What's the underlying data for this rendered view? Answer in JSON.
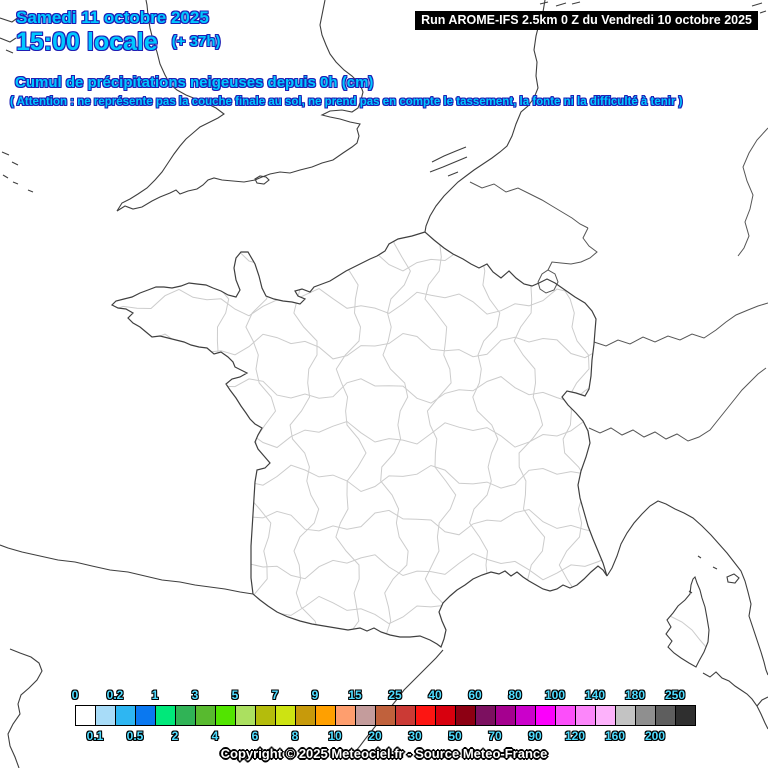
{
  "title_block": {
    "date": "Samedi 11 octobre 2025",
    "time": "15:00 locale",
    "offset": "(+ 37h)",
    "subtitle": "Cumul de précipitations neigeuses depuis 0h (cm)",
    "warning": "( Attention : ne représente pas la couche finale au sol, ne prend pas en compte le tassement, la fonte ni la difficulté à tenir )",
    "text_color": "#00c8ff",
    "outline_color": "#1e1eb4"
  },
  "run_banner": {
    "label": "Run AROME-IFS 2.5km 0 Z du Vendredi 10 octobre 2025",
    "bg": "#000000",
    "fg": "#ffffff"
  },
  "map": {
    "region": "France métropolitaine et pays voisins, limites de départements",
    "coast_color": "#3f3f3f",
    "border_color": "#565656",
    "department_color": "#cccccc",
    "land_fill": "#ffffff",
    "sea_fill": "#ffffff"
  },
  "legend": {
    "unit": "cm",
    "boundaries": [
      "0",
      "0.1",
      "0.2",
      "0.5",
      "1",
      "2",
      "3",
      "4",
      "5",
      "6",
      "7",
      "8",
      "9",
      "10",
      "15",
      "20",
      "25",
      "30",
      "40",
      "50",
      "60",
      "70",
      "80",
      "90",
      "100",
      "120",
      "140",
      "160",
      "180",
      "200",
      "250"
    ],
    "colors": [
      "#ffffff",
      "#a8dcf8",
      "#2eb6f2",
      "#0a78f0",
      "#00e87a",
      "#30b356",
      "#58ba2f",
      "#52e400",
      "#abe060",
      "#b4bc0c",
      "#cde312",
      "#c79a0b",
      "#ffa000",
      "#fe9e6e",
      "#c49c9c",
      "#c0613c",
      "#cb3a35",
      "#fd1512",
      "#d8000e",
      "#8d0013",
      "#7c1060",
      "#a5008f",
      "#cb00cb",
      "#fb00fb",
      "#fc4efa",
      "#fc86fa",
      "#fdb2fb",
      "#c3c3c3",
      "#8f8f8f",
      "#5e5e5e",
      "#2f2f2f"
    ],
    "label_color": "#4fdcff",
    "cell_border_color": "#000000"
  },
  "footer": {
    "copyright": "Copyright © 2025 Meteociel.fr - Source Meteo-France"
  },
  "chart_data": {
    "type": "heatmap",
    "title": "Cumul de précipitations neigeuses depuis 0h (cm)",
    "unit": "cm",
    "thresholds": [
      0,
      0.1,
      0.2,
      0.5,
      1,
      2,
      3,
      4,
      5,
      6,
      7,
      8,
      9,
      10,
      15,
      20,
      25,
      30,
      40,
      50,
      60,
      70,
      80,
      90,
      100,
      120,
      140,
      160,
      180,
      200,
      250
    ],
    "palette": [
      "#ffffff",
      "#a8dcf8",
      "#2eb6f2",
      "#0a78f0",
      "#00e87a",
      "#30b356",
      "#58ba2f",
      "#52e400",
      "#abe060",
      "#b4bc0c",
      "#cde312",
      "#c79a0b",
      "#ffa000",
      "#fe9e6e",
      "#c49c9c",
      "#c0613c",
      "#cb3a35",
      "#fd1512",
      "#d8000e",
      "#8d0013",
      "#7c1060",
      "#a5008f",
      "#cb00cb",
      "#fb00fb",
      "#fc4efa",
      "#fc86fa",
      "#fdb2fb",
      "#c3c3c3",
      "#8f8f8f",
      "#5e5e5e",
      "#2f2f2f"
    ],
    "note": "Aucune zone colorée sur la carte : cumul de neige nul (0 cm) sur tout le domaine"
  }
}
